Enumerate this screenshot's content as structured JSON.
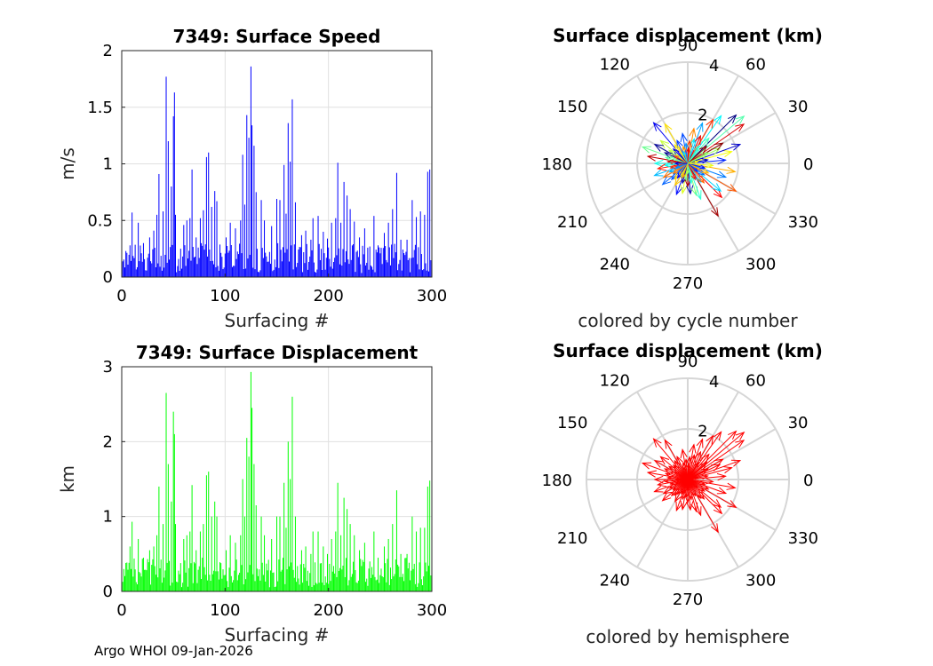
{
  "footer": "Argo WHOI 09-Jan-2026",
  "chart_data": [
    {
      "type": "bar",
      "title": "7349: Surface Speed",
      "xlabel": "Surfacing #",
      "ylabel": "m/s",
      "xlim": [
        0,
        300
      ],
      "ylim": [
        0,
        2
      ],
      "xticks": [
        "0",
        "100",
        "200",
        "300"
      ],
      "yticks": [
        "0",
        "0.5",
        "1",
        "1.5",
        "2"
      ],
      "color": "#0000ff",
      "peaks": [
        [
          4,
          0.23
        ],
        [
          8,
          0.28
        ],
        [
          10,
          0.57
        ],
        [
          16,
          0.48
        ],
        [
          21,
          0.3
        ],
        [
          27,
          0.35
        ],
        [
          31,
          0.41
        ],
        [
          34,
          0.55
        ],
        [
          36,
          0.91
        ],
        [
          40,
          0.58
        ],
        [
          43,
          1.77
        ],
        [
          45,
          1.2
        ],
        [
          48,
          0.8
        ],
        [
          50,
          1.42
        ],
        [
          51,
          1.63
        ],
        [
          52,
          0.55
        ],
        [
          60,
          0.46
        ],
        [
          63,
          0.5
        ],
        [
          66,
          0.52
        ],
        [
          68,
          0.95
        ],
        [
          72,
          0.35
        ],
        [
          76,
          0.52
        ],
        [
          79,
          0.59
        ],
        [
          82,
          1.06
        ],
        [
          84,
          1.1
        ],
        [
          87,
          0.62
        ],
        [
          90,
          0.76
        ],
        [
          92,
          0.67
        ],
        [
          101,
          0.35
        ],
        [
          105,
          0.48
        ],
        [
          110,
          0.43
        ],
        [
          115,
          0.5
        ],
        [
          117,
          1.08
        ],
        [
          119,
          0.64
        ],
        [
          121,
          1.43
        ],
        [
          123,
          1.23
        ],
        [
          125,
          1.86
        ],
        [
          126,
          1.34
        ],
        [
          128,
          1.16
        ],
        [
          130,
          0.75
        ],
        [
          135,
          0.68
        ],
        [
          138,
          0.5
        ],
        [
          145,
          0.45
        ],
        [
          150,
          0.69
        ],
        [
          153,
          0.68
        ],
        [
          157,
          0.99
        ],
        [
          159,
          0.56
        ],
        [
          161,
          1.36
        ],
        [
          163,
          1.02
        ],
        [
          165,
          1.57
        ],
        [
          168,
          0.66
        ],
        [
          174,
          0.37
        ],
        [
          178,
          0.41
        ],
        [
          183,
          0.33
        ],
        [
          185,
          0.52
        ],
        [
          190,
          0.54
        ],
        [
          195,
          0.4
        ],
        [
          199,
          0.34
        ],
        [
          203,
          0.48
        ],
        [
          207,
          0.52
        ],
        [
          209,
          1.01
        ],
        [
          212,
          0.48
        ],
        [
          215,
          0.84
        ],
        [
          218,
          0.72
        ],
        [
          221,
          0.6
        ],
        [
          225,
          0.49
        ],
        [
          230,
          0.35
        ],
        [
          235,
          0.43
        ],
        [
          240,
          0.27
        ],
        [
          244,
          0.54
        ],
        [
          248,
          0.28
        ],
        [
          254,
          0.39
        ],
        [
          258,
          0.48
        ],
        [
          262,
          0.6
        ],
        [
          266,
          0.92
        ],
        [
          270,
          0.33
        ],
        [
          276,
          0.33
        ],
        [
          281,
          0.68
        ],
        [
          285,
          0.53
        ],
        [
          289,
          0.58
        ],
        [
          293,
          0.55
        ],
        [
          296,
          0.93
        ],
        [
          298,
          0.95
        ]
      ]
    },
    {
      "type": "bar",
      "title": "7349: Surface Displacement",
      "xlabel": "Surfacing #",
      "ylabel": "km",
      "xlim": [
        0,
        300
      ],
      "ylim": [
        0,
        3
      ],
      "xticks": [
        "0",
        "100",
        "200",
        "300"
      ],
      "yticks": [
        "0",
        "1",
        "2",
        "3"
      ],
      "color": "#00ff00",
      "peaks": [
        [
          4,
          0.38
        ],
        [
          8,
          0.6
        ],
        [
          10,
          0.93
        ],
        [
          16,
          0.7
        ],
        [
          21,
          0.45
        ],
        [
          27,
          0.55
        ],
        [
          31,
          0.6
        ],
        [
          34,
          0.75
        ],
        [
          36,
          1.4
        ],
        [
          40,
          0.9
        ],
        [
          43,
          2.65
        ],
        [
          45,
          1.7
        ],
        [
          48,
          1.2
        ],
        [
          50,
          2.4
        ],
        [
          51,
          2.1
        ],
        [
          52,
          0.9
        ],
        [
          60,
          0.7
        ],
        [
          63,
          0.75
        ],
        [
          66,
          0.8
        ],
        [
          68,
          1.42
        ],
        [
          72,
          0.55
        ],
        [
          76,
          0.8
        ],
        [
          79,
          0.9
        ],
        [
          82,
          1.55
        ],
        [
          84,
          1.6
        ],
        [
          87,
          1.0
        ],
        [
          90,
          1.2
        ],
        [
          92,
          1.0
        ],
        [
          101,
          0.55
        ],
        [
          105,
          0.75
        ],
        [
          110,
          0.65
        ],
        [
          115,
          0.75
        ],
        [
          117,
          1.5
        ],
        [
          119,
          1.0
        ],
        [
          121,
          2.05
        ],
        [
          123,
          1.8
        ],
        [
          125,
          2.93
        ],
        [
          126,
          2.45
        ],
        [
          128,
          1.7
        ],
        [
          130,
          1.15
        ],
        [
          135,
          1.0
        ],
        [
          138,
          0.75
        ],
        [
          145,
          0.7
        ],
        [
          150,
          1.0
        ],
        [
          153,
          1.0
        ],
        [
          157,
          1.45
        ],
        [
          159,
          0.85
        ],
        [
          161,
          2.0
        ],
        [
          163,
          1.5
        ],
        [
          165,
          2.6
        ],
        [
          168,
          1.0
        ],
        [
          174,
          0.55
        ],
        [
          178,
          0.6
        ],
        [
          183,
          0.5
        ],
        [
          185,
          0.8
        ],
        [
          190,
          0.8
        ],
        [
          195,
          0.6
        ],
        [
          199,
          0.5
        ],
        [
          203,
          0.7
        ],
        [
          207,
          0.8
        ],
        [
          209,
          1.45
        ],
        [
          212,
          0.75
        ],
        [
          215,
          1.25
        ],
        [
          218,
          1.1
        ],
        [
          221,
          0.9
        ],
        [
          225,
          0.75
        ],
        [
          230,
          0.55
        ],
        [
          235,
          0.65
        ],
        [
          240,
          0.4
        ],
        [
          244,
          0.8
        ],
        [
          248,
          0.45
        ],
        [
          254,
          0.6
        ],
        [
          258,
          0.7
        ],
        [
          262,
          0.9
        ],
        [
          266,
          1.35
        ],
        [
          270,
          0.5
        ],
        [
          276,
          0.5
        ],
        [
          281,
          1.0
        ],
        [
          285,
          0.8
        ],
        [
          289,
          0.85
        ],
        [
          293,
          0.85
        ],
        [
          296,
          1.4
        ],
        [
          298,
          1.48
        ]
      ]
    },
    {
      "type": "polar",
      "title": "Surface displacement (km)",
      "caption": "colored by cycle number",
      "rmax": 4,
      "rings": [
        2,
        4
      ],
      "ring_labels": [
        "2",
        "4"
      ],
      "angle_labels": [
        "0",
        "30",
        "60",
        "90",
        "120",
        "150",
        "180",
        "210",
        "240",
        "270",
        "300",
        "330"
      ],
      "color_mode": "cycle",
      "arrows": [
        [
          45,
          2.7
        ],
        [
          40,
          2.9
        ],
        [
          35,
          2.7
        ],
        [
          55,
          2.3
        ],
        [
          60,
          2.0
        ],
        [
          70,
          1.7
        ],
        [
          80,
          1.4
        ],
        [
          100,
          1.2
        ],
        [
          120,
          1.8
        ],
        [
          130,
          2.1
        ],
        [
          140,
          1.4
        ],
        [
          150,
          1.5
        ],
        [
          160,
          1.9
        ],
        [
          170,
          1.6
        ],
        [
          180,
          1.3
        ],
        [
          190,
          1.2
        ],
        [
          200,
          1.4
        ],
        [
          210,
          1.1
        ],
        [
          220,
          1.3
        ],
        [
          240,
          1.0
        ],
        [
          250,
          1.3
        ],
        [
          260,
          1.2
        ],
        [
          275,
          1.2
        ],
        [
          285,
          1.3
        ],
        [
          300,
          2.4
        ],
        [
          290,
          1.5
        ],
        [
          315,
          1.9
        ],
        [
          320,
          1.7
        ],
        [
          330,
          2.2
        ],
        [
          340,
          1.6
        ],
        [
          350,
          1.9
        ],
        [
          5,
          1.5
        ],
        [
          15,
          1.8
        ],
        [
          20,
          2.2
        ],
        [
          25,
          1.4
        ],
        [
          30,
          1.6
        ],
        [
          50,
          1.3
        ],
        [
          65,
          1.2
        ],
        [
          75,
          1.0
        ],
        [
          85,
          0.9
        ],
        [
          95,
          0.8
        ],
        [
          105,
          0.7
        ],
        [
          115,
          1.0
        ],
        [
          125,
          0.9
        ],
        [
          135,
          0.8
        ],
        [
          145,
          0.9
        ],
        [
          155,
          1.0
        ],
        [
          165,
          0.9
        ],
        [
          175,
          0.8
        ],
        [
          185,
          0.9
        ],
        [
          195,
          0.7
        ],
        [
          205,
          0.8
        ],
        [
          215,
          0.7
        ],
        [
          225,
          0.9
        ],
        [
          230,
          0.8
        ],
        [
          235,
          0.7
        ],
        [
          245,
          0.6
        ],
        [
          255,
          0.8
        ],
        [
          265,
          0.7
        ],
        [
          270,
          0.9
        ],
        [
          280,
          0.8
        ],
        [
          295,
          0.7
        ],
        [
          305,
          0.9
        ],
        [
          310,
          1.0
        ],
        [
          325,
          0.8
        ],
        [
          335,
          0.9
        ],
        [
          345,
          0.7
        ],
        [
          355,
          1.0
        ],
        [
          10,
          0.8
        ],
        [
          28,
          0.9
        ],
        [
          42,
          1.0
        ],
        [
          58,
          0.8
        ],
        [
          88,
          0.6
        ],
        [
          110,
          0.5
        ],
        [
          150,
          0.6
        ],
        [
          200,
          0.5
        ],
        [
          250,
          0.6
        ],
        [
          320,
          0.5
        ],
        [
          10,
          0.4
        ],
        [
          180,
          0.5
        ],
        [
          270,
          0.4
        ]
      ]
    },
    {
      "type": "polar",
      "title": "Surface displacement (km)",
      "caption": "colored by hemisphere",
      "rmax": 4,
      "rings": [
        2,
        4
      ],
      "ring_labels": [
        "2",
        "4"
      ],
      "angle_labels": [
        "0",
        "30",
        "60",
        "90",
        "120",
        "150",
        "180",
        "210",
        "240",
        "270",
        "300",
        "330"
      ],
      "color_mode": "single",
      "color": "#ff0000",
      "arrows": [
        [
          45,
          2.7
        ],
        [
          40,
          2.9
        ],
        [
          35,
          2.7
        ],
        [
          55,
          2.3
        ],
        [
          60,
          2.0
        ],
        [
          70,
          1.7
        ],
        [
          80,
          1.4
        ],
        [
          100,
          1.2
        ],
        [
          120,
          1.8
        ],
        [
          130,
          2.1
        ],
        [
          140,
          1.4
        ],
        [
          150,
          1.5
        ],
        [
          160,
          1.9
        ],
        [
          170,
          1.6
        ],
        [
          180,
          1.3
        ],
        [
          190,
          1.2
        ],
        [
          200,
          1.4
        ],
        [
          210,
          1.1
        ],
        [
          220,
          1.3
        ],
        [
          240,
          1.0
        ],
        [
          250,
          1.3
        ],
        [
          260,
          1.2
        ],
        [
          275,
          1.2
        ],
        [
          285,
          1.3
        ],
        [
          300,
          2.4
        ],
        [
          290,
          1.5
        ],
        [
          315,
          1.9
        ],
        [
          320,
          1.7
        ],
        [
          330,
          2.2
        ],
        [
          340,
          1.6
        ],
        [
          350,
          1.9
        ],
        [
          5,
          1.5
        ],
        [
          15,
          1.8
        ],
        [
          20,
          2.2
        ],
        [
          25,
          1.4
        ],
        [
          30,
          1.6
        ],
        [
          50,
          1.3
        ],
        [
          65,
          1.2
        ],
        [
          75,
          1.0
        ],
        [
          85,
          0.9
        ],
        [
          95,
          0.8
        ],
        [
          105,
          0.7
        ],
        [
          115,
          1.0
        ],
        [
          125,
          0.9
        ],
        [
          135,
          0.8
        ],
        [
          145,
          0.9
        ],
        [
          155,
          1.0
        ],
        [
          165,
          0.9
        ],
        [
          175,
          0.8
        ],
        [
          185,
          0.9
        ],
        [
          195,
          0.7
        ],
        [
          205,
          0.8
        ],
        [
          215,
          0.7
        ],
        [
          225,
          0.9
        ],
        [
          230,
          0.8
        ],
        [
          235,
          0.7
        ],
        [
          245,
          0.6
        ],
        [
          255,
          0.8
        ],
        [
          265,
          0.7
        ],
        [
          270,
          0.9
        ],
        [
          280,
          0.8
        ],
        [
          295,
          0.7
        ],
        [
          305,
          0.9
        ],
        [
          310,
          1.0
        ],
        [
          325,
          0.8
        ],
        [
          335,
          0.9
        ],
        [
          345,
          0.7
        ],
        [
          355,
          1.0
        ],
        [
          10,
          0.8
        ],
        [
          28,
          0.9
        ],
        [
          42,
          1.0
        ],
        [
          58,
          0.8
        ],
        [
          88,
          0.6
        ],
        [
          110,
          0.5
        ],
        [
          150,
          0.6
        ],
        [
          200,
          0.5
        ],
        [
          250,
          0.6
        ],
        [
          320,
          0.5
        ],
        [
          10,
          0.4
        ],
        [
          180,
          0.5
        ],
        [
          270,
          0.4
        ]
      ]
    }
  ]
}
